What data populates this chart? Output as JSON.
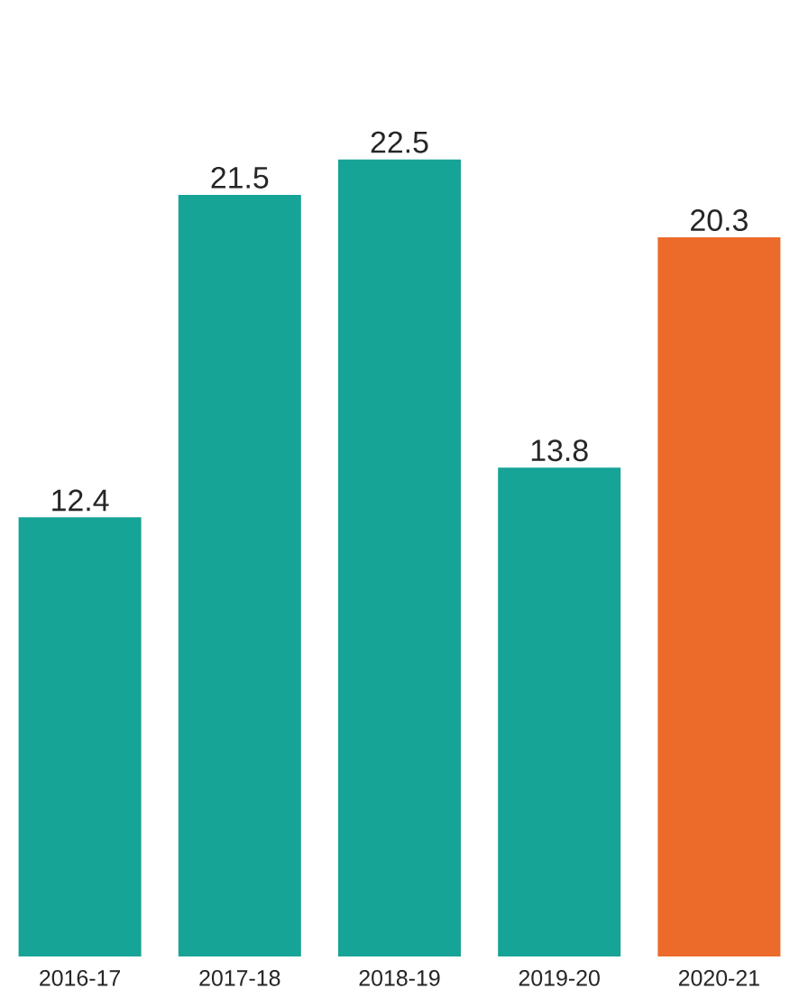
{
  "chart_data": {
    "type": "bar",
    "categories": [
      "2016-17",
      "2017-18",
      "2018-19",
      "2019-20",
      "2020-21"
    ],
    "values": [
      12.4,
      21.5,
      22.5,
      13.8,
      20.3
    ],
    "colors": [
      "#16a497",
      "#16a497",
      "#16a497",
      "#16a497",
      "#ec6a2a"
    ],
    "data_labels": true
  }
}
